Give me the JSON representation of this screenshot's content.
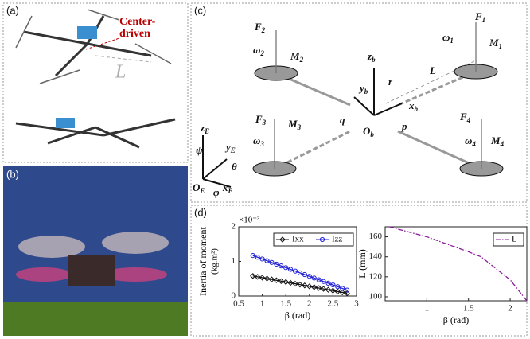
{
  "panels": [
    "(a)",
    "(b)",
    "(c)",
    "(d)"
  ],
  "photo_a": {
    "annotation": "Center-\ndriven",
    "length": "L"
  },
  "diagram": {
    "labels": [
      {
        "text": "F",
        "sub": "2"
      },
      {
        "text": "ω",
        "sub": "2"
      },
      {
        "text": "M",
        "sub": "2"
      },
      {
        "text": "F",
        "sub": "1"
      },
      {
        "text": "ω",
        "sub": "1"
      },
      {
        "text": "M",
        "sub": "1"
      },
      {
        "text": "z",
        "sub": "b"
      },
      {
        "text": "L",
        "sub": ""
      },
      {
        "text": "y",
        "sub": "b"
      },
      {
        "text": "r",
        "sub": ""
      },
      {
        "text": "x",
        "sub": "b"
      },
      {
        "text": "q",
        "sub": ""
      },
      {
        "text": "O",
        "sub": "b"
      },
      {
        "text": "p",
        "sub": ""
      },
      {
        "text": "F",
        "sub": "3"
      },
      {
        "text": "M",
        "sub": "3"
      },
      {
        "text": "ω",
        "sub": "3"
      },
      {
        "text": "F",
        "sub": "4"
      },
      {
        "text": "ω",
        "sub": "4"
      },
      {
        "text": "M",
        "sub": "4"
      },
      {
        "text": "z",
        "sub": "E"
      },
      {
        "text": "y",
        "sub": "E"
      },
      {
        "text": "O",
        "sub": "E"
      },
      {
        "text": "x",
        "sub": "E"
      },
      {
        "text": "ψ",
        "sub": ""
      },
      {
        "text": "θ",
        "sub": ""
      },
      {
        "text": "φ",
        "sub": ""
      }
    ]
  },
  "chart_data": [
    {
      "type": "line",
      "y_label": "Inertia of moment",
      "y_unit": "(kg.m²)",
      "multiplier": "×10⁻³",
      "x_label": "β (rad)",
      "x": [
        0.8,
        0.9,
        1.0,
        1.1,
        1.2,
        1.3,
        1.4,
        1.5,
        1.6,
        1.7,
        1.8,
        1.9,
        2.0,
        2.1,
        2.2,
        2.3,
        2.4,
        2.5,
        2.6,
        2.7,
        2.8
      ],
      "series": [
        {
          "name": "Ixx",
          "color": "#111111",
          "marker": "diamond",
          "values": [
            0.58,
            0.555,
            0.53,
            0.505,
            0.48,
            0.455,
            0.43,
            0.405,
            0.38,
            0.355,
            0.33,
            0.305,
            0.28,
            0.255,
            0.23,
            0.205,
            0.18,
            0.155,
            0.13,
            0.105,
            0.08
          ]
        },
        {
          "name": "Izz",
          "color": "#1f1fd6",
          "marker": "circle",
          "values": [
            1.17,
            1.12,
            1.07,
            1.02,
            0.97,
            0.92,
            0.87,
            0.82,
            0.77,
            0.72,
            0.67,
            0.62,
            0.57,
            0.52,
            0.47,
            0.42,
            0.37,
            0.32,
            0.27,
            0.22,
            0.17
          ]
        }
      ],
      "xlim": [
        0.5,
        3
      ],
      "xticks": [
        0.5,
        1,
        1.5,
        2,
        2.5,
        3
      ],
      "ylim": [
        0,
        2
      ],
      "yticks": [
        0,
        1,
        2
      ],
      "legend": "upper right"
    },
    {
      "type": "line",
      "y_label": "L (mm)",
      "x_label": "β (rad)",
      "x": [
        0.55,
        1.0,
        1.5,
        1.65,
        2.0,
        2.2
      ],
      "series": [
        {
          "name": "L",
          "color": "#8b1a9b",
          "marker": "none",
          "dash": "6,2,1.5,2",
          "values": [
            170,
            160,
            145,
            140,
            117,
            96
          ]
        }
      ],
      "xlim": [
        0.5,
        2.2
      ],
      "xticks": [
        1,
        1.5,
        2
      ],
      "ylim": [
        96,
        170
      ],
      "yticks": [
        100,
        120,
        140,
        160
      ],
      "legend": "upper right"
    }
  ]
}
